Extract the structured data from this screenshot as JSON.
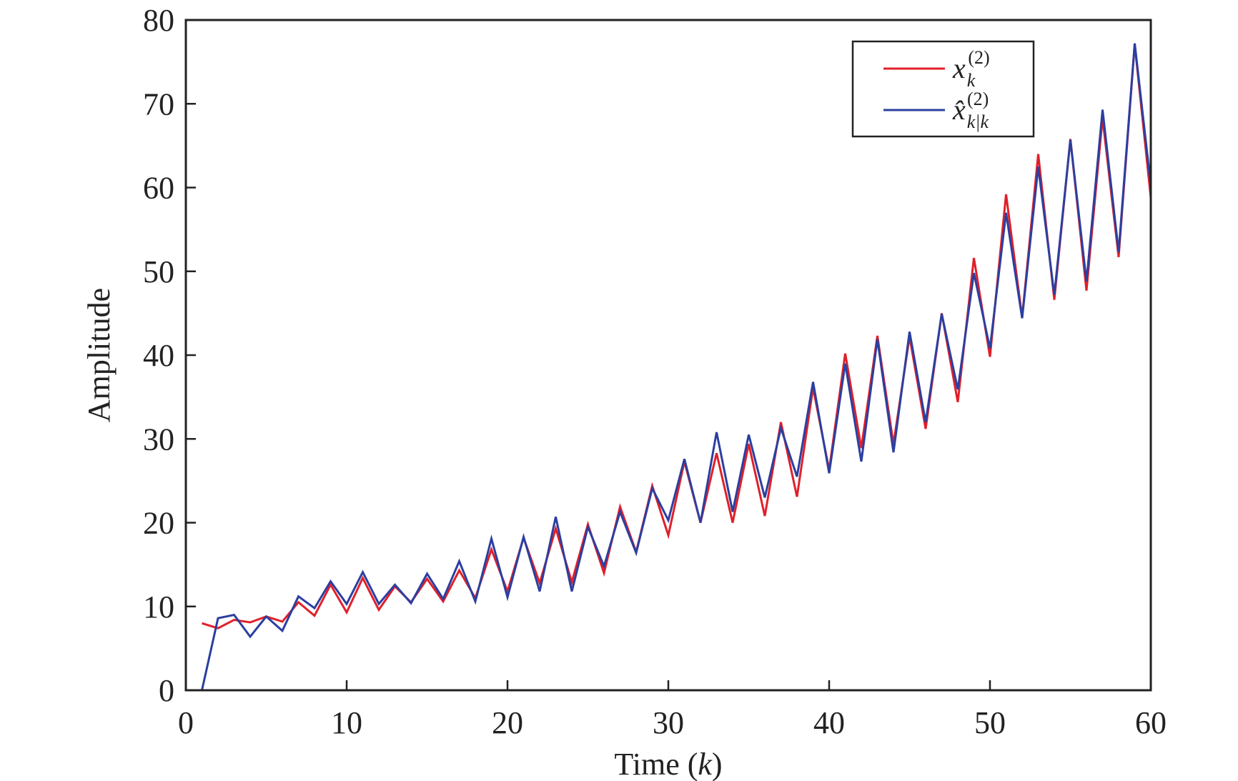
{
  "chart_data": {
    "type": "line",
    "xlabel": "Time (k)",
    "xlabel_parts": {
      "pre": "Time (",
      "var": "k",
      "post": ")"
    },
    "ylabel": "Amplitude",
    "xlim": [
      0,
      60
    ],
    "ylim": [
      0,
      80
    ],
    "xticks": [
      0,
      10,
      20,
      30,
      40,
      50,
      60
    ],
    "yticks": [
      0,
      10,
      20,
      30,
      40,
      50,
      60,
      70,
      80
    ],
    "grid": false,
    "legend_position": "top-right",
    "x": [
      1,
      2,
      3,
      4,
      5,
      6,
      7,
      8,
      9,
      10,
      11,
      12,
      13,
      14,
      15,
      16,
      17,
      18,
      19,
      20,
      21,
      22,
      23,
      24,
      25,
      26,
      27,
      28,
      29,
      30,
      31,
      32,
      33,
      34,
      35,
      36,
      37,
      38,
      39,
      40,
      41,
      42,
      43,
      44,
      45,
      46,
      47,
      48,
      49,
      50,
      51,
      52,
      53,
      54,
      55,
      56,
      57,
      58,
      59,
      60
    ],
    "series": [
      {
        "name": "x_k^(2)",
        "legend_base": "x",
        "legend_sub": "k",
        "legend_sup": "(2)",
        "hat": false,
        "color": "#e0202a",
        "values": [
          8.0,
          7.4,
          8.4,
          8.1,
          8.8,
          8.2,
          10.5,
          8.9,
          12.6,
          9.3,
          13.4,
          9.6,
          12.4,
          10.5,
          13.3,
          10.6,
          14.3,
          11.0,
          16.8,
          11.8,
          18.2,
          12.8,
          19.3,
          12.9,
          19.8,
          14.0,
          21.9,
          16.5,
          24.4,
          18.5,
          27.3,
          20.0,
          28.3,
          20.0,
          29.4,
          20.8,
          32.0,
          23.1,
          36.1,
          26.3,
          40.2,
          28.9,
          42.3,
          29.4,
          42.2,
          31.2,
          45.0,
          34.4,
          51.6,
          39.8,
          59.2,
          44.5,
          64.0,
          46.6,
          65.8,
          47.7,
          68.3,
          51.7,
          77.1,
          58.8
        ]
      },
      {
        "name": "x̂_k|k^(2)",
        "legend_base": "x̂",
        "legend_sub": "k|k",
        "legend_sup": "(2)",
        "hat": true,
        "color": "#2b3fa0",
        "values": [
          0.0,
          8.6,
          9.0,
          6.4,
          8.8,
          7.1,
          11.2,
          9.8,
          13.0,
          10.3,
          14.1,
          10.3,
          12.6,
          10.4,
          13.9,
          10.9,
          15.4,
          10.6,
          18.1,
          11.1,
          18.3,
          11.8,
          20.7,
          11.8,
          19.5,
          14.8,
          21.3,
          16.4,
          24.1,
          20.3,
          27.6,
          20.0,
          30.8,
          21.3,
          30.5,
          23.0,
          31.3,
          25.5,
          36.8,
          25.9,
          39.0,
          27.3,
          41.9,
          28.4,
          42.8,
          32.0,
          44.9,
          35.9,
          49.8,
          40.8,
          57.0,
          44.4,
          62.5,
          47.2,
          65.7,
          48.8,
          69.3,
          52.3,
          77.2,
          60.3
        ]
      }
    ]
  }
}
